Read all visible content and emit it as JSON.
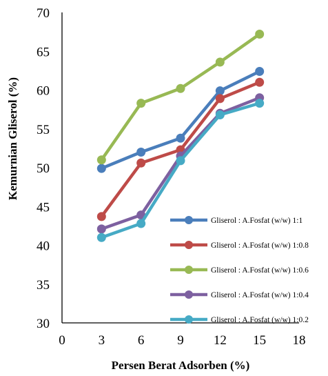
{
  "chart_data": {
    "type": "line",
    "title": "",
    "xlabel": "Persen Berat Adsorben (%)",
    "ylabel": "Kemurnian Gliserol (%)",
    "xlim": [
      0,
      18
    ],
    "ylim": [
      30,
      70
    ],
    "xticks": [
      0,
      3,
      6,
      9,
      12,
      15,
      18
    ],
    "yticks": [
      30,
      35,
      40,
      45,
      50,
      55,
      60,
      65,
      70
    ],
    "grid": false,
    "legend_position": "bottom-right",
    "x": [
      3,
      6,
      9,
      12,
      15
    ],
    "series": [
      {
        "name": "Gliserol : A.Fosfat  (w/w) 1:1",
        "color": "#4a7ebb",
        "values": [
          49.9,
          52.0,
          53.8,
          59.9,
          62.4
        ]
      },
      {
        "name": "Gliserol : A.Fosfat  (w/w) 1:0.8",
        "color": "#be4b48",
        "values": [
          43.7,
          50.6,
          52.3,
          58.9,
          61.0
        ]
      },
      {
        "name": "Gliserol : A.Fosfat  (w/w) 1:0.6",
        "color": "#98b954",
        "values": [
          51.0,
          58.3,
          60.2,
          63.6,
          67.2
        ]
      },
      {
        "name": "Gliserol : A.Fosfat  (w/w) 1:0.4",
        "color": "#7d60a0",
        "values": [
          42.1,
          43.9,
          51.5,
          57.0,
          59.0
        ]
      },
      {
        "name": "Gliserol : A.Fosfat  (w/w) 1:0.2",
        "color": "#46aac5",
        "values": [
          41.0,
          42.8,
          50.9,
          56.8,
          58.3
        ]
      }
    ]
  }
}
